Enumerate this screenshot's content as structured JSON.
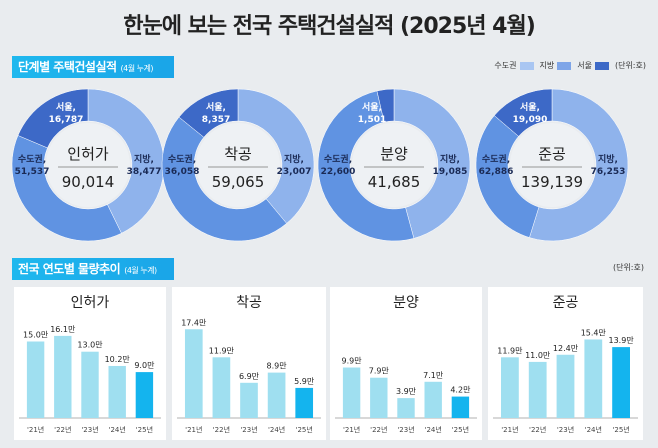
{
  "title": "한눈에 보는 전국 주택건설실적 (2025년 4월)",
  "section1": {
    "label": "단계별 주택건설실적",
    "sub": "(4월 누계)"
  },
  "legend": {
    "items": [
      {
        "label": "수도권",
        "color": "#a9c6f2"
      },
      {
        "label": "지방",
        "color": "#7ea5e8"
      },
      {
        "label": "서울",
        "color": "#3d69c7"
      }
    ],
    "unit": "(단위:호)"
  },
  "section2": {
    "label": "전국 연도별 물량추이",
    "sub": "(4월 누계)",
    "unit": "(단위:호)"
  },
  "chart_data": [
    {
      "type": "pie",
      "title": "인허가",
      "total": "90,014",
      "slices": [
        {
          "name": "지방",
          "value": 38477,
          "label": "38,477"
        },
        {
          "name": "수도권",
          "value": 51537,
          "label": "51,537"
        },
        {
          "name": "서울",
          "value": 16787,
          "label": "16,787"
        }
      ]
    },
    {
      "type": "pie",
      "title": "착공",
      "total": "59,065",
      "slices": [
        {
          "name": "지방",
          "value": 23007,
          "label": "23,007"
        },
        {
          "name": "수도권",
          "value": 36058,
          "label": "36,058"
        },
        {
          "name": "서울",
          "value": 8357,
          "label": "8,357"
        }
      ]
    },
    {
      "type": "pie",
      "title": "분양",
      "total": "41,685",
      "slices": [
        {
          "name": "지방",
          "value": 19085,
          "label": "19,085"
        },
        {
          "name": "수도권",
          "value": 22600,
          "label": "22,600"
        },
        {
          "name": "서울",
          "value": 1501,
          "label": "1,501"
        }
      ]
    },
    {
      "type": "pie",
      "title": "준공",
      "total": "139,139",
      "slices": [
        {
          "name": "지방",
          "value": 76253,
          "label": "76,253"
        },
        {
          "name": "수도권",
          "value": 62886,
          "label": "62,886"
        },
        {
          "name": "서울",
          "value": 19090,
          "label": "19,090"
        }
      ]
    },
    {
      "type": "bar",
      "title": "인허가",
      "categories": [
        "'21년",
        "'22년",
        "'23년",
        "'24년",
        "'25년"
      ],
      "values": [
        15.0,
        16.1,
        13.0,
        10.2,
        9.0
      ],
      "labels": [
        "15.0만",
        "16.1만",
        "13.0만",
        "10.2만",
        "9.0만"
      ]
    },
    {
      "type": "bar",
      "title": "착공",
      "categories": [
        "'21년",
        "'22년",
        "'23년",
        "'24년",
        "'25년"
      ],
      "values": [
        17.4,
        11.9,
        6.9,
        8.9,
        5.9
      ],
      "labels": [
        "17.4만",
        "11.9만",
        "6.9만",
        "8.9만",
        "5.9만"
      ]
    },
    {
      "type": "bar",
      "title": "분양",
      "categories": [
        "'21년",
        "'22년",
        "'23년",
        "'24년",
        "'25년"
      ],
      "values": [
        9.9,
        7.9,
        3.9,
        7.1,
        4.2
      ],
      "labels": [
        "9.9만",
        "7.9만",
        "3.9만",
        "7.1만",
        "4.2만"
      ]
    },
    {
      "type": "bar",
      "title": "준공",
      "categories": [
        "'21년",
        "'22년",
        "'23년",
        "'24년",
        "'25년"
      ],
      "values": [
        11.9,
        11.0,
        12.4,
        15.4,
        13.9
      ],
      "labels": [
        "11.9만",
        "11.0만",
        "12.4만",
        "15.4만",
        "13.9만"
      ]
    }
  ],
  "colors": {
    "bar": "#9fdff0",
    "bar_current": "#14b4ee",
    "donut_local": "#8fb3ec",
    "donut_metro": "#6093e2",
    "donut_seoul": "#3d69c7"
  }
}
